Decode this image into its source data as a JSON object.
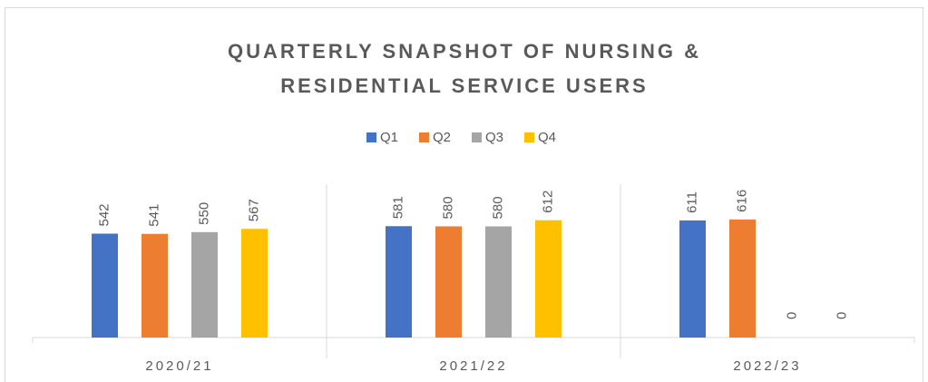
{
  "chart_data": {
    "type": "bar",
    "title": [
      "QUARTERLY SNAPSHOT OF NURSING &",
      "RESIDENTIAL SERVICE USERS"
    ],
    "categories": [
      "2020/21",
      "2021/22",
      "2022/23"
    ],
    "series": [
      {
        "name": "Q1",
        "color": "#4472c4",
        "values": [
          542,
          581,
          611
        ]
      },
      {
        "name": "Q2",
        "color": "#ed7d31",
        "values": [
          541,
          580,
          616
        ]
      },
      {
        "name": "Q3",
        "color": "#a5a5a5",
        "values": [
          550,
          580,
          0
        ]
      },
      {
        "name": "Q4",
        "color": "#ffc000",
        "values": [
          567,
          612,
          0
        ]
      }
    ],
    "ylim": [
      0,
      800
    ],
    "legend": "top"
  }
}
